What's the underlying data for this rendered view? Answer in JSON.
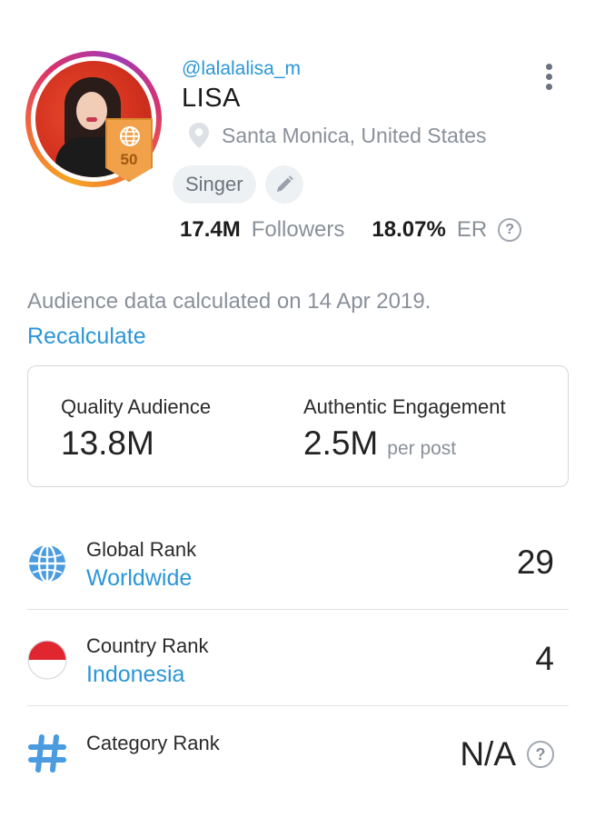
{
  "profile": {
    "handle": "@lalalalisa_m",
    "name": "LISA",
    "location": "Santa Monica, United States",
    "tag": "Singer",
    "badge_level": "50",
    "followers_value": "17.4M",
    "followers_label": "Followers",
    "er_value": "18.07%",
    "er_label": "ER",
    "help_glyph": "?"
  },
  "audience": {
    "note": "Audience data calculated on 14 Apr 2019.",
    "recalculate_label": "Recalculate"
  },
  "metrics": {
    "quality_label": "Quality Audience",
    "quality_value": "13.8M",
    "engagement_label": "Authentic Engagement",
    "engagement_value": "2.5M",
    "engagement_unit": "per post"
  },
  "ranks": [
    {
      "label": "Global Rank",
      "sub": "Worldwide",
      "value": "29",
      "icon": "globe-icon"
    },
    {
      "label": "Country Rank",
      "sub": "Indonesia",
      "value": "4",
      "icon": "indonesia-flag-icon"
    },
    {
      "label": "Category Rank",
      "sub": "",
      "value": "N/A",
      "icon": "hashtag-icon"
    }
  ],
  "colors": {
    "accent_blue": "#2b96d6",
    "muted_text": "#8a9099",
    "badge_orange": "#f0a14a",
    "flag_red": "#e0262f"
  }
}
